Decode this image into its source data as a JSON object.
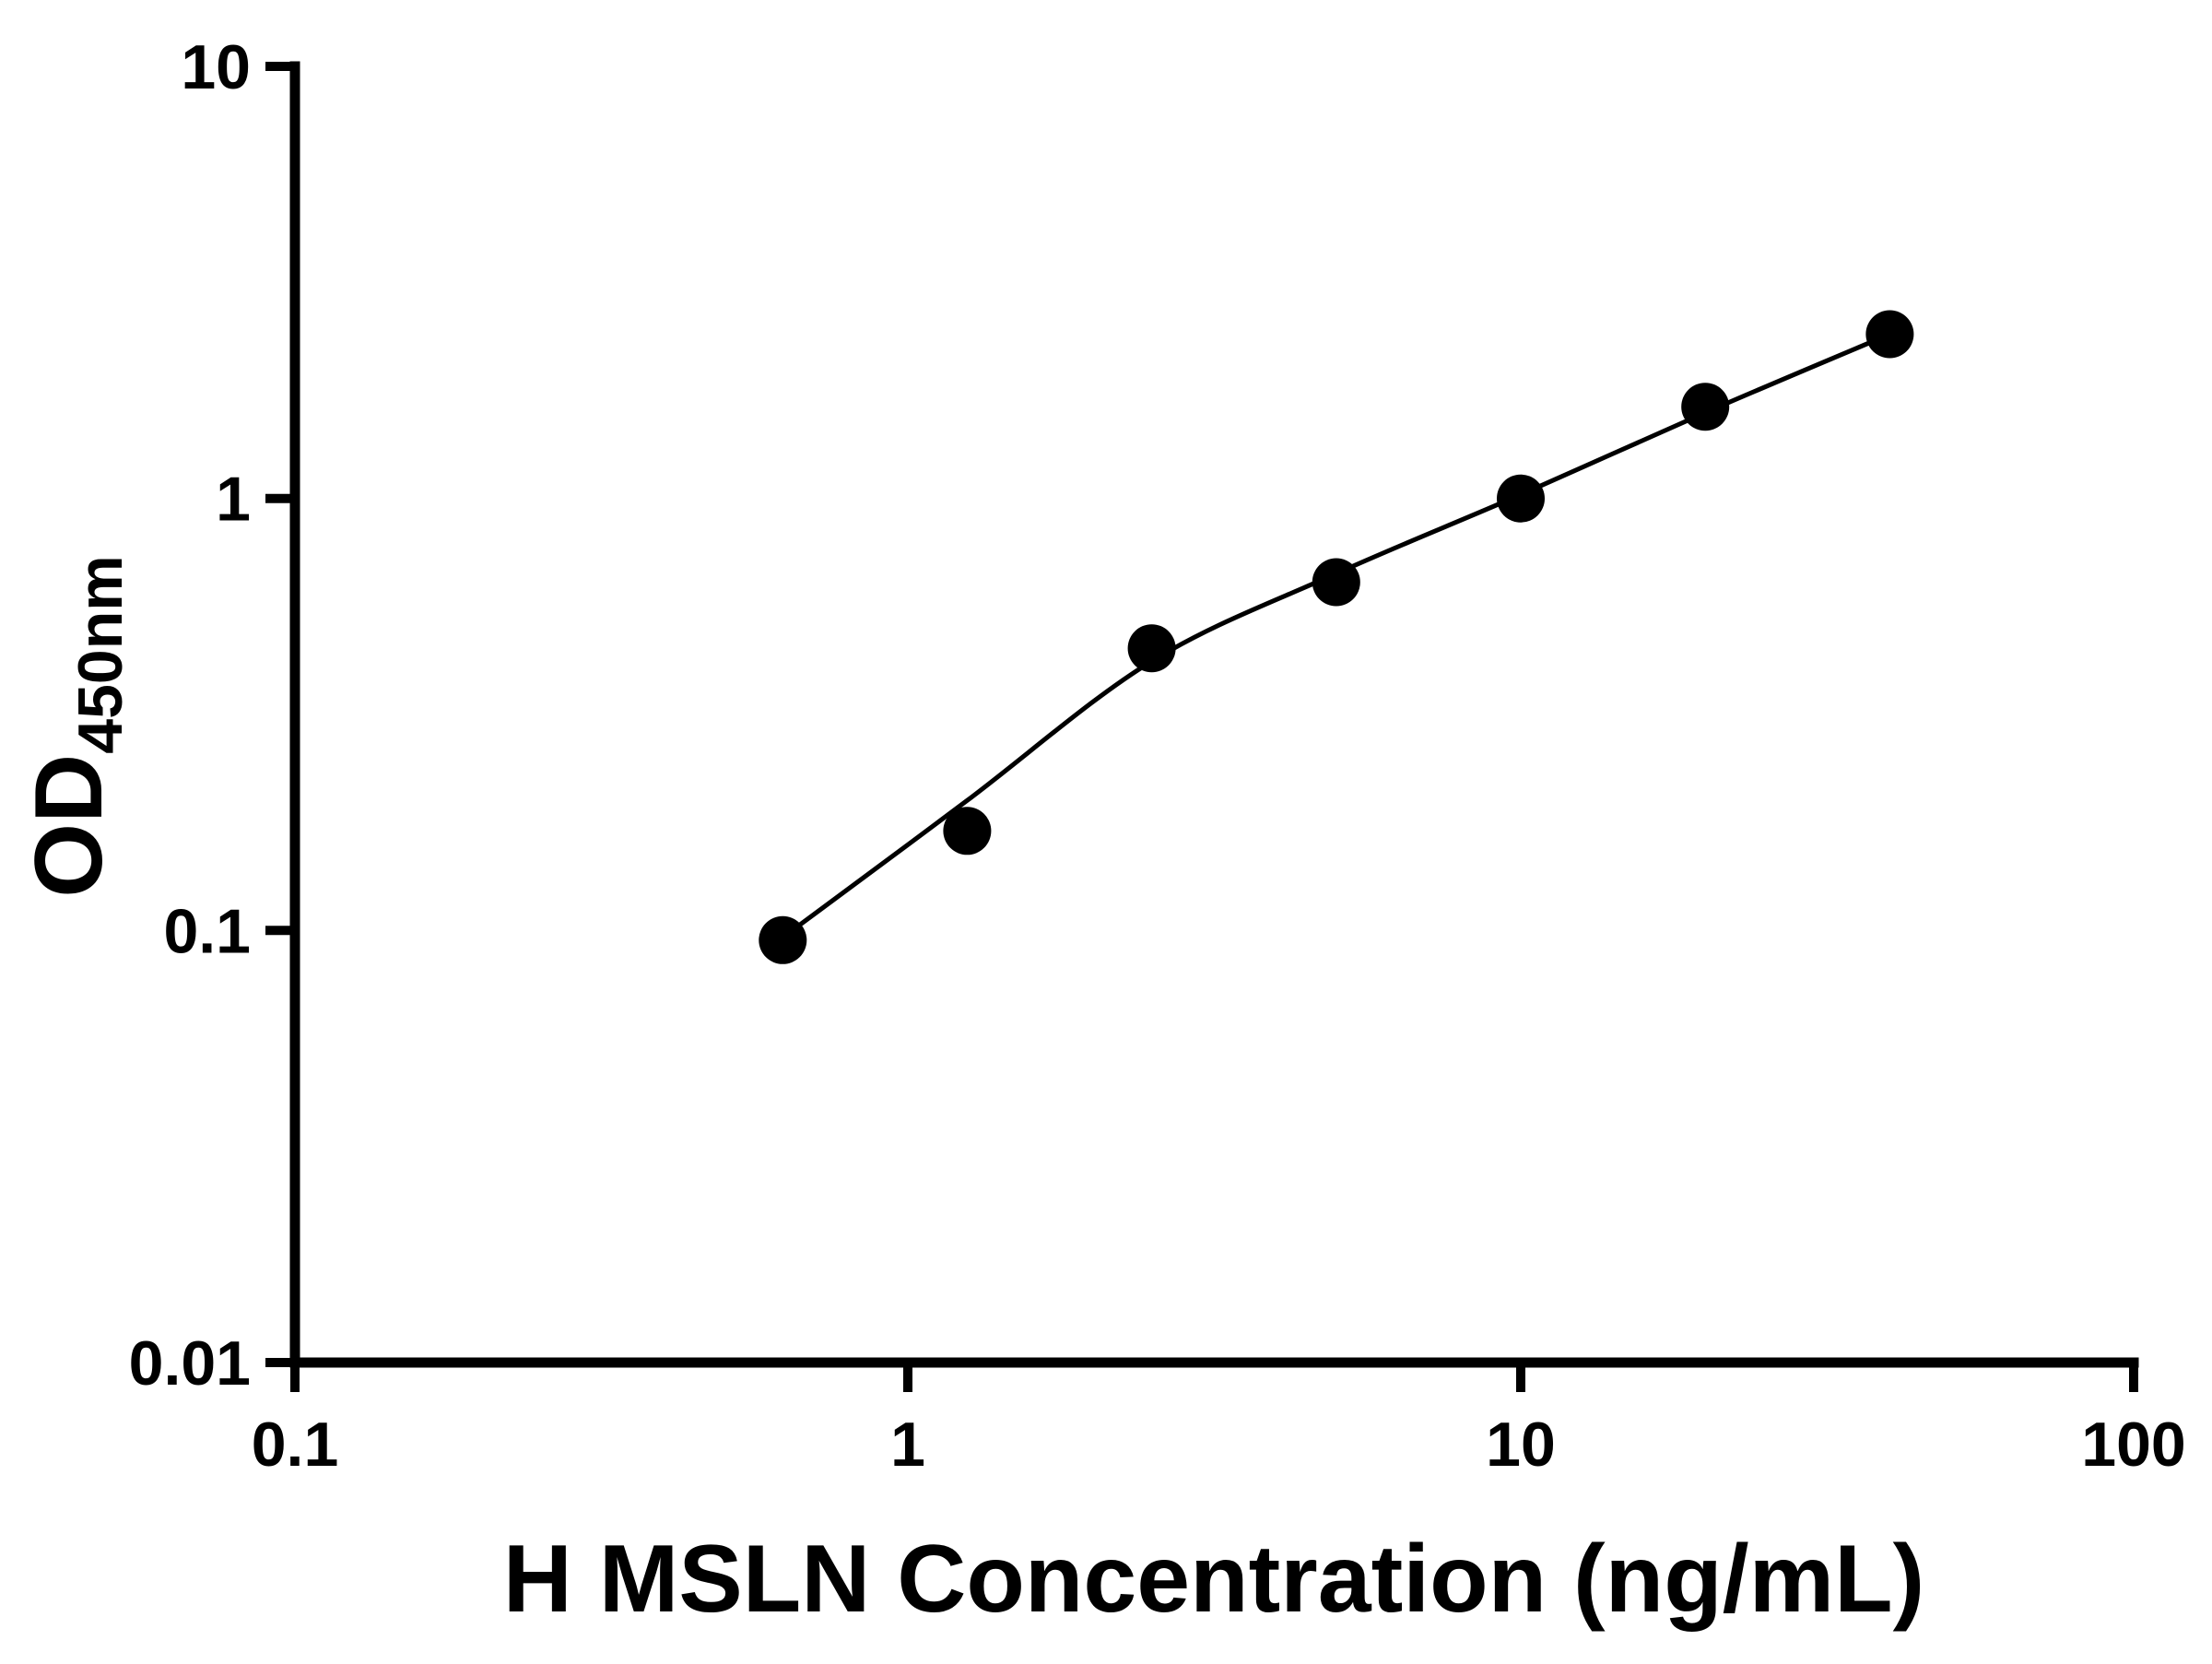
{
  "figure": {
    "background": "#ffffff"
  },
  "chart_data": {
    "type": "scatter",
    "title": "",
    "xlabel": "H MSLN Concentration (ng/mL)",
    "ylabel_main": "OD",
    "ylabel_subscript": "450nm",
    "xscale": "log",
    "yscale": "log",
    "xlim": [
      0.1,
      100
    ],
    "ylim": [
      0.01,
      10
    ],
    "grid": false,
    "legend": false,
    "axis_color": "#000000",
    "marker_color": "#000000",
    "line_color": "#000000",
    "x_ticks": [
      {
        "value": 0.1,
        "label": "0.1"
      },
      {
        "value": 1,
        "label": "1"
      },
      {
        "value": 10,
        "label": "10"
      },
      {
        "value": 100,
        "label": "100"
      }
    ],
    "y_ticks": [
      {
        "value": 0.01,
        "label": "0.01"
      },
      {
        "value": 0.1,
        "label": "0.1"
      },
      {
        "value": 1,
        "label": "1"
      },
      {
        "value": 10,
        "label": "10"
      }
    ],
    "series": [
      {
        "name": "fit-curve",
        "type": "line",
        "color": "#000000",
        "points": [
          [
            0.66,
            0.102
          ],
          [
            1.25,
            0.2
          ],
          [
            2.5,
            0.42
          ],
          [
            5,
            0.67
          ],
          [
            10,
            1.02
          ],
          [
            20,
            1.58
          ],
          [
            40,
            2.4
          ]
        ]
      },
      {
        "name": "standard-points",
        "type": "scatter",
        "marker": "filled-circle",
        "color": "#000000",
        "points": [
          [
            0.625,
            0.095
          ],
          [
            1.25,
            0.17
          ],
          [
            2.5,
            0.45
          ],
          [
            5,
            0.64
          ],
          [
            10,
            1.0
          ],
          [
            20,
            1.63
          ],
          [
            40,
            2.4
          ]
        ]
      }
    ]
  }
}
